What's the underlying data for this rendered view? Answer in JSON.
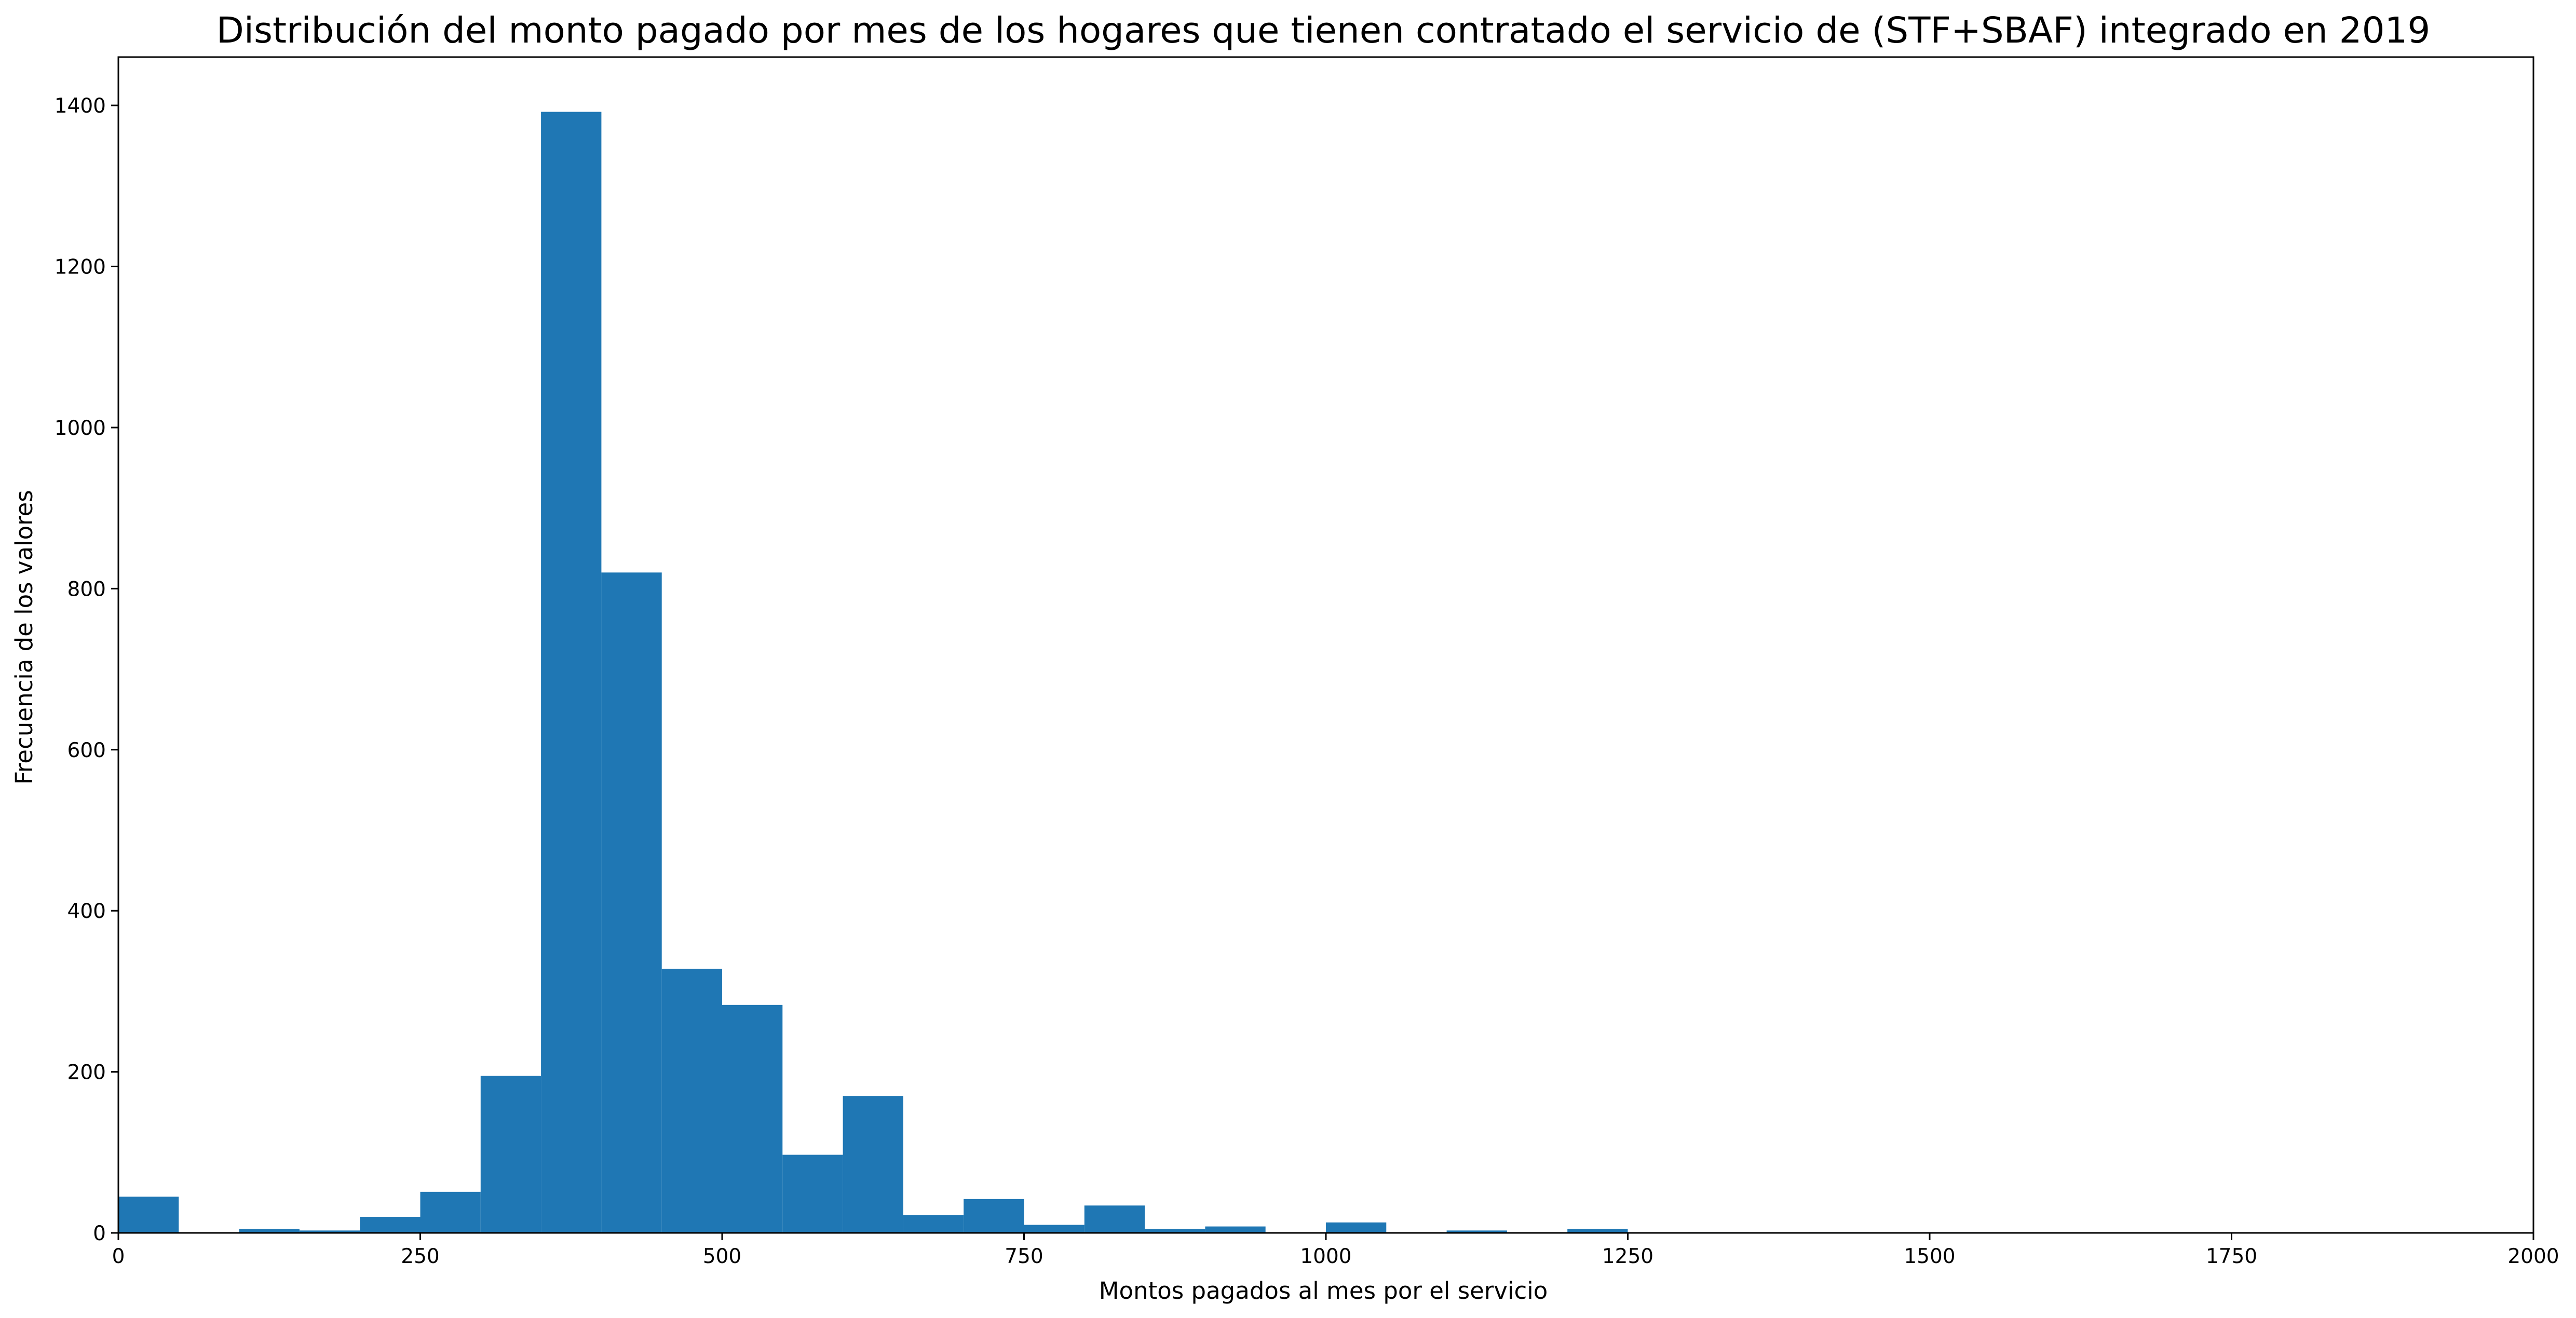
{
  "chart_data": {
    "type": "bar",
    "title": "Distribución del monto pagado por mes de los hogares que tienen contratado el servicio de (STF+SBAF) integrado en 2019",
    "xlabel": "Montos pagados al mes por el servicio",
    "ylabel": "Frecuencia de los valores",
    "xlim": [
      0,
      2000
    ],
    "ylim": [
      0,
      1460
    ],
    "x_ticks": [
      0,
      250,
      500,
      750,
      1000,
      1250,
      1500,
      1750,
      2000
    ],
    "y_ticks": [
      0,
      200,
      400,
      600,
      800,
      1000,
      1200,
      1400
    ],
    "bin_width": 50,
    "bins": [
      {
        "x": 0,
        "count": 45
      },
      {
        "x": 50,
        "count": 0
      },
      {
        "x": 100,
        "count": 5
      },
      {
        "x": 150,
        "count": 3
      },
      {
        "x": 200,
        "count": 20
      },
      {
        "x": 250,
        "count": 51
      },
      {
        "x": 300,
        "count": 195
      },
      {
        "x": 350,
        "count": 1392
      },
      {
        "x": 400,
        "count": 820
      },
      {
        "x": 450,
        "count": 328
      },
      {
        "x": 500,
        "count": 283
      },
      {
        "x": 550,
        "count": 97
      },
      {
        "x": 600,
        "count": 170
      },
      {
        "x": 650,
        "count": 22
      },
      {
        "x": 700,
        "count": 42
      },
      {
        "x": 750,
        "count": 10
      },
      {
        "x": 800,
        "count": 34
      },
      {
        "x": 850,
        "count": 5
      },
      {
        "x": 900,
        "count": 8
      },
      {
        "x": 950,
        "count": 0
      },
      {
        "x": 1000,
        "count": 13
      },
      {
        "x": 1050,
        "count": 0
      },
      {
        "x": 1100,
        "count": 3
      },
      {
        "x": 1150,
        "count": 0
      },
      {
        "x": 1200,
        "count": 5
      },
      {
        "x": 1250,
        "count": 0
      },
      {
        "x": 1300,
        "count": 1
      },
      {
        "x": 1350,
        "count": 0
      },
      {
        "x": 1400,
        "count": 1
      },
      {
        "x": 1450,
        "count": 0
      },
      {
        "x": 1500,
        "count": 1
      }
    ],
    "bar_color": "#1f77b4",
    "grid": false,
    "legend": false
  }
}
